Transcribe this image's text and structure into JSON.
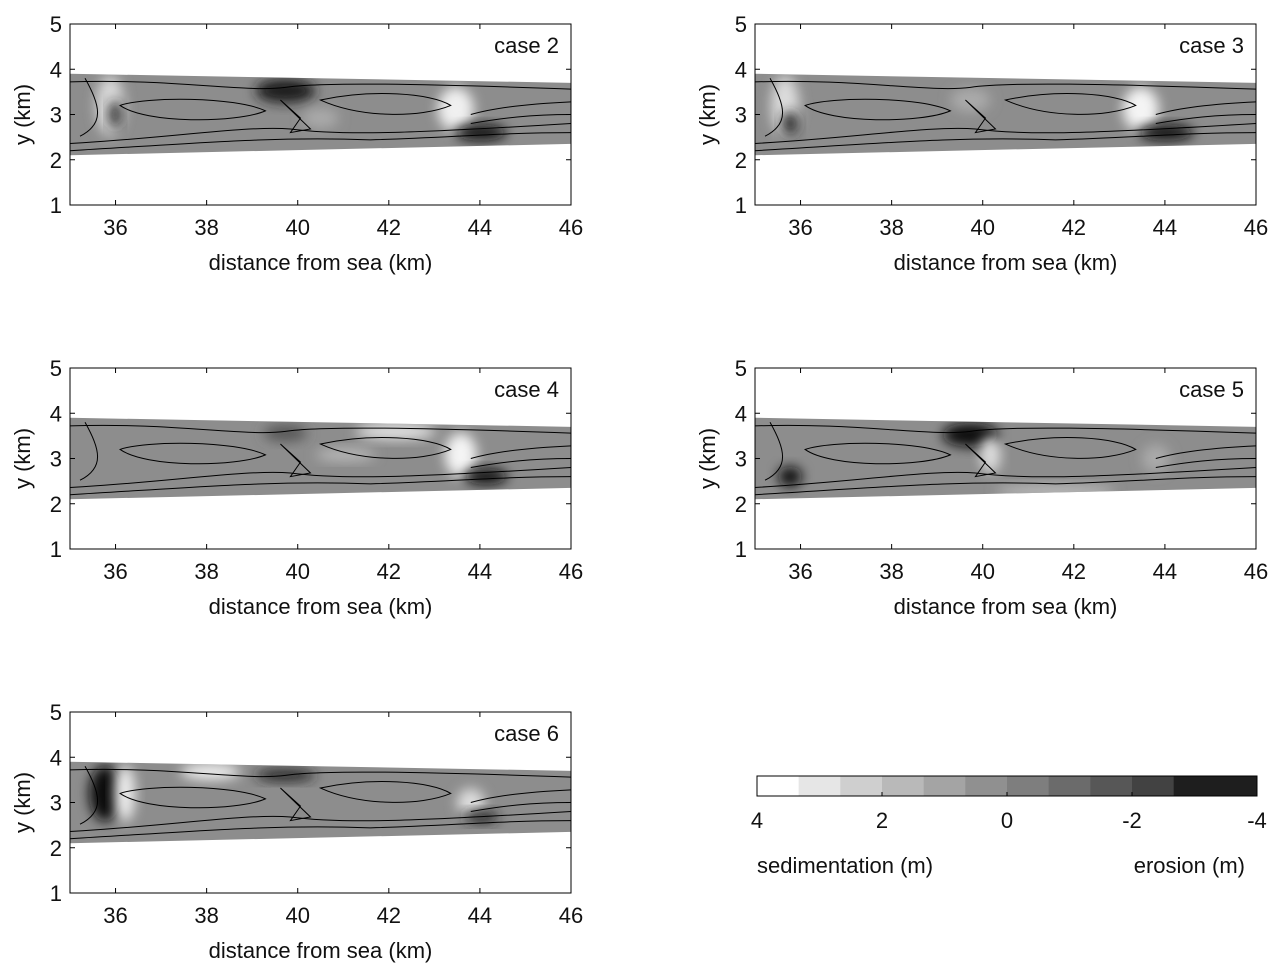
{
  "chart_data": [
    {
      "type": "contour",
      "annotation": "case 2",
      "xlabel": "distance from sea (km)",
      "ylabel": "y (km)",
      "xlim": [
        35,
        46
      ],
      "ylim": [
        1,
        5
      ],
      "xticks": [
        36,
        38,
        40,
        42,
        44,
        46
      ],
      "yticks": [
        1,
        2,
        3,
        4,
        5
      ]
    },
    {
      "type": "contour",
      "annotation": "case 3",
      "xlabel": "distance from sea (km)",
      "ylabel": "y (km)",
      "xlim": [
        35,
        46
      ],
      "ylim": [
        1,
        5
      ],
      "xticks": [
        36,
        38,
        40,
        42,
        44,
        46
      ],
      "yticks": [
        1,
        2,
        3,
        4,
        5
      ]
    },
    {
      "type": "contour",
      "annotation": "case 4",
      "xlabel": "distance from sea (km)",
      "ylabel": "y (km)",
      "xlim": [
        35,
        46
      ],
      "ylim": [
        1,
        5
      ],
      "xticks": [
        36,
        38,
        40,
        42,
        44,
        46
      ],
      "yticks": [
        1,
        2,
        3,
        4,
        5
      ]
    },
    {
      "type": "contour",
      "annotation": "case 5",
      "xlabel": "distance from sea (km)",
      "ylabel": "y (km)",
      "xlim": [
        35,
        46
      ],
      "ylim": [
        1,
        5
      ],
      "xticks": [
        36,
        38,
        40,
        42,
        44,
        46
      ],
      "yticks": [
        1,
        2,
        3,
        4,
        5
      ]
    },
    {
      "type": "contour",
      "annotation": "case 6",
      "xlabel": "distance from sea (km)",
      "ylabel": "y (km)",
      "xlim": [
        35,
        46
      ],
      "ylim": [
        1,
        5
      ],
      "xticks": [
        36,
        38,
        40,
        42,
        44,
        46
      ],
      "yticks": [
        1,
        2,
        3,
        4,
        5
      ]
    },
    {
      "type": "colorbar",
      "xlim": [
        4,
        -4
      ],
      "xticks": [
        4,
        2,
        0,
        -2,
        -4
      ],
      "label_left": "sedimentation (m)",
      "label_right": "erosion (m)",
      "colors": [
        "#ffffff",
        "#e6e6e6",
        "#cfcfcf",
        "#b9b9b9",
        "#a4a4a4",
        "#909090",
        "#7e7e7e",
        "#6b6b6b",
        "#575757",
        "#424242",
        "#1e1e1e",
        "#1e1e1e"
      ]
    }
  ]
}
